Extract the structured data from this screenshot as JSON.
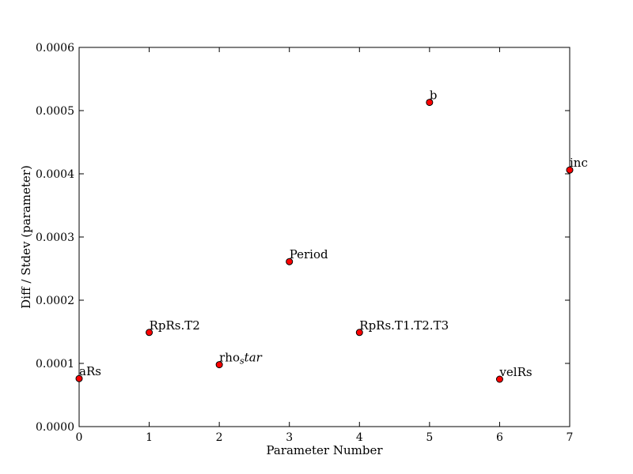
{
  "chart_data": {
    "type": "scatter",
    "title": "",
    "xlabel": "Parameter Number",
    "ylabel": "Diff / Stdev (parameter)",
    "xlim": [
      0,
      7
    ],
    "ylim": [
      0,
      0.0006
    ],
    "grid": false,
    "marker_color": "#ff0000",
    "marker_edge_color": "#000000",
    "x_ticks": [
      "0",
      "1",
      "2",
      "3",
      "4",
      "5",
      "6",
      "7"
    ],
    "y_ticks": [
      "0.0000",
      "0.0001",
      "0.0002",
      "0.0003",
      "0.0004",
      "0.0005",
      "0.0006"
    ],
    "points": [
      {
        "x": 0,
        "y": 7.6e-05,
        "label": "aRs"
      },
      {
        "x": 1,
        "y": 0.000149,
        "label": "RpRs.T2"
      },
      {
        "x": 2,
        "y": 9.8e-05,
        "label": "rho",
        "label_sub": "s",
        "label_math": "tar"
      },
      {
        "x": 3,
        "y": 0.000261,
        "label": "Period"
      },
      {
        "x": 4,
        "y": 0.000149,
        "label": "RpRs.T1.T2.T3"
      },
      {
        "x": 5,
        "y": 0.000513,
        "label": "b"
      },
      {
        "x": 6,
        "y": 7.5e-05,
        "label": "velRs"
      },
      {
        "x": 7,
        "y": 0.000406,
        "label": "inc"
      }
    ]
  }
}
